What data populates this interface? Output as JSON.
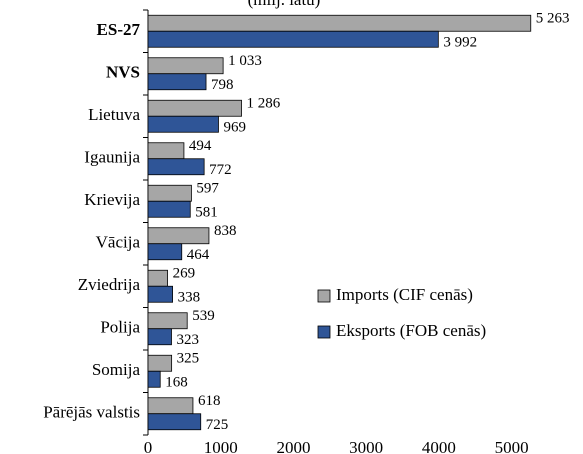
{
  "chart_data": {
    "type": "barh",
    "subtitle": "(milj. latu)",
    "categories": [
      "ES-27",
      "NVS",
      "Lietuva",
      "Igaunija",
      "Krievija",
      "Vācija",
      "Zviedrija",
      "Polija",
      "Somija",
      "Pārējās valstis"
    ],
    "series": [
      {
        "name": "Imports (CIF cenās)",
        "color": "#a6a6a6",
        "values": [
          5263,
          1033,
          1286,
          494,
          597,
          838,
          269,
          539,
          325,
          618
        ],
        "value_labels": [
          "5 263",
          "1 033",
          "1 286",
          "494",
          "597",
          "838",
          "269",
          "539",
          "325",
          "618"
        ]
      },
      {
        "name": "Eksports (FOB cenās)",
        "color": "#2f5597",
        "values": [
          3992,
          798,
          969,
          772,
          581,
          464,
          338,
          323,
          168,
          725
        ],
        "value_labels": [
          "3 992",
          "798",
          "969",
          "772",
          "581",
          "464",
          "338",
          "323",
          "168",
          "725"
        ]
      }
    ],
    "xlim": [
      0,
      5500
    ],
    "xticks": [
      0,
      1000,
      2000,
      3000,
      4000,
      5000
    ],
    "legend": "right"
  }
}
